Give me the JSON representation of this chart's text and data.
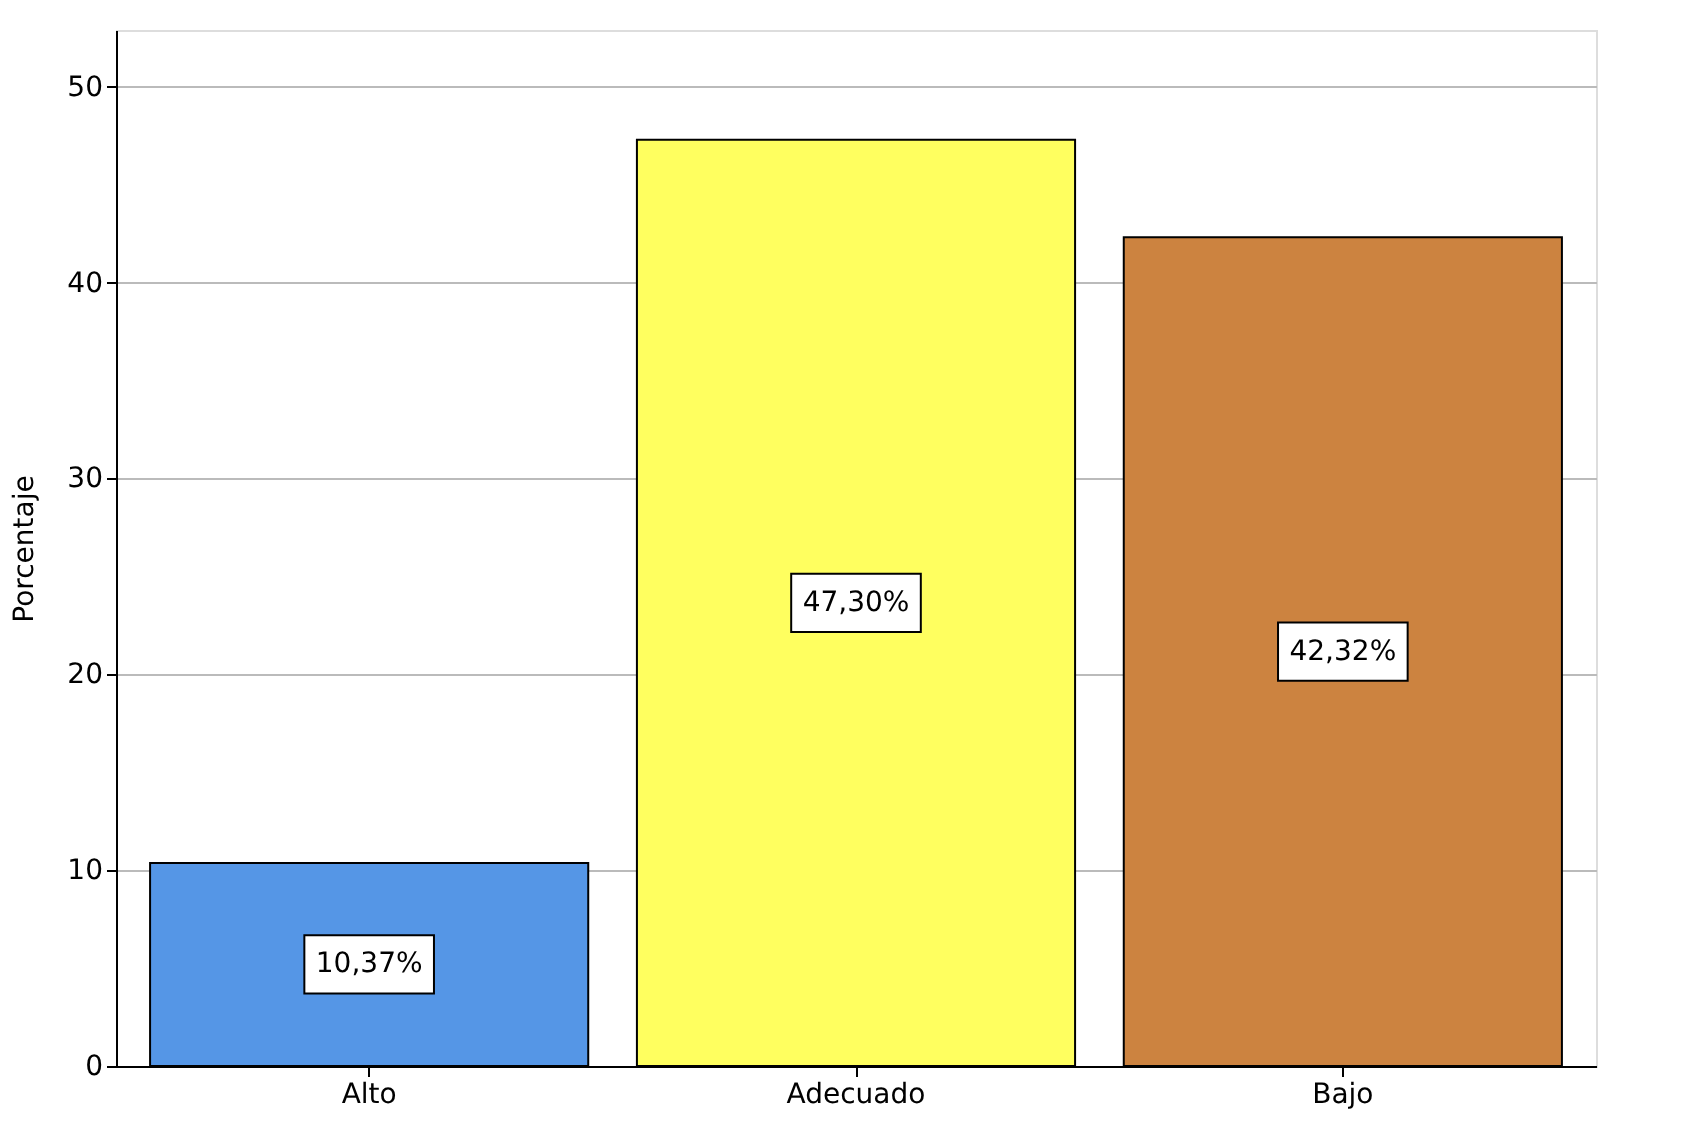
{
  "chart_data": {
    "type": "bar",
    "ylabel": "Porcentaje",
    "categories": [
      "Alto",
      "Adecuado",
      "Bajo"
    ],
    "values": [
      10.37,
      47.3,
      42.32
    ],
    "colors": [
      "#5596e6",
      "#ffff5f",
      "#cc8340"
    ],
    "value_labels": [
      "10,37%",
      "47,30%",
      "42,32%"
    ],
    "ylim": [
      0,
      52.9
    ],
    "yticks": [
      0,
      10,
      20,
      30,
      40,
      50
    ],
    "grid": "y"
  }
}
